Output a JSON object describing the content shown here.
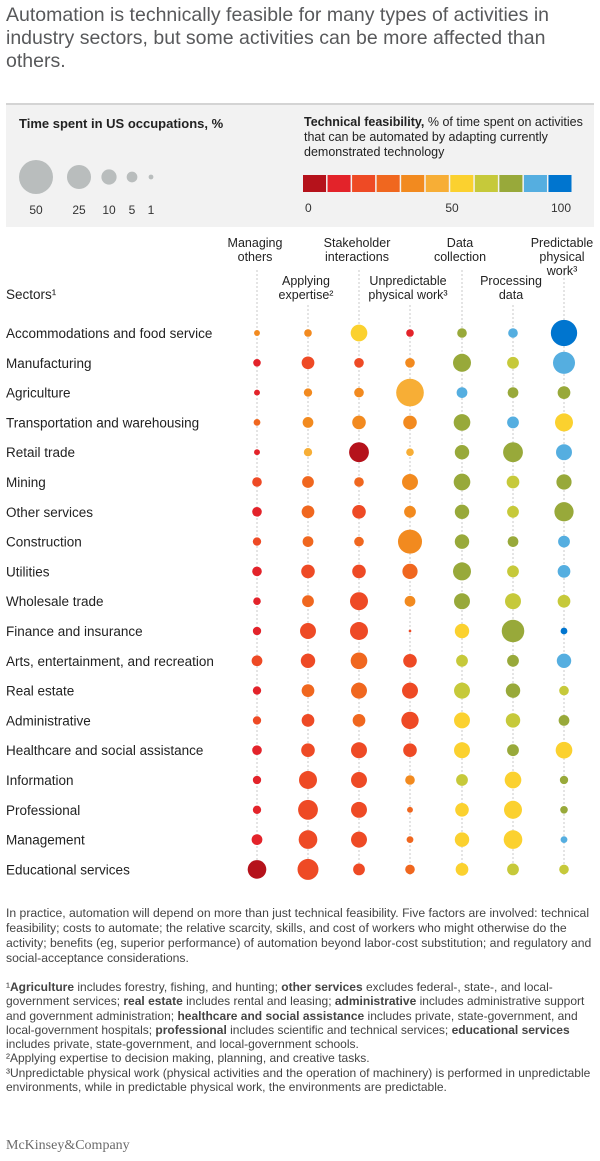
{
  "title": "Automation is technically feasible for many types of activities in industry sectors, but some activities can be more affected than others.",
  "legend": {
    "size_title": "Time spent in US occupations, %",
    "size_values": [
      50,
      25,
      10,
      5,
      1
    ],
    "size_labels": [
      "50",
      "25",
      "10",
      "5",
      "1"
    ],
    "color_title_bold": "Technical feasibility,",
    "color_title_rest": " % of time spent on activities that can be automated by adapting currently demonstrated technology",
    "color_scale": [
      "#b5121b",
      "#e3232a",
      "#ee4a25",
      "#f0671f",
      "#f28a1f",
      "#f7ae36",
      "#fbd12f",
      "#c6c93a",
      "#98a93a",
      "#55aee0",
      "#0075cf"
    ],
    "color_tick_labels": [
      "0",
      "50",
      "100"
    ]
  },
  "chart_data": {
    "type": "bubble-matrix",
    "sectors_header": "Sectors¹",
    "columns": [
      [
        "Managing",
        "others"
      ],
      [
        "Applying",
        "expertise²"
      ],
      [
        "Stakeholder",
        "interactions"
      ],
      [
        "Unpredictable",
        "physical work³"
      ],
      [
        "Data",
        "collection"
      ],
      [
        "Processing",
        "data"
      ],
      [
        "Predictable",
        "physical",
        "work³"
      ]
    ],
    "rows": [
      {
        "sector": "Accommodations and food service",
        "size": [
          1.5,
          2.5,
          12,
          2.5,
          4,
          4,
          30
        ],
        "color": [
          4,
          4,
          6,
          1,
          8,
          9,
          10
        ]
      },
      {
        "sector": "Manufacturing",
        "size": [
          2.5,
          7,
          4,
          4,
          14,
          6,
          21
        ],
        "color": [
          1,
          2,
          2,
          4,
          8,
          7,
          9
        ]
      },
      {
        "sector": "Agriculture",
        "size": [
          1.5,
          3,
          4,
          33,
          5,
          5,
          7
        ],
        "color": [
          1,
          4,
          4,
          5,
          9,
          8,
          8
        ]
      },
      {
        "sector": "Transportation and warehousing",
        "size": [
          2,
          5,
          8,
          8,
          12,
          6,
          14
        ],
        "color": [
          3,
          4,
          4,
          4,
          8,
          9,
          6
        ]
      },
      {
        "sector": "Retail trade",
        "size": [
          1.5,
          3,
          17,
          2.5,
          9,
          17,
          11
        ],
        "color": [
          1,
          5,
          0,
          5,
          8,
          8,
          9
        ]
      },
      {
        "sector": "Mining",
        "size": [
          4,
          6,
          4,
          11,
          12,
          7,
          10
        ],
        "color": [
          2,
          3,
          3,
          4,
          8,
          7,
          8
        ]
      },
      {
        "sector": "Other services",
        "size": [
          4,
          7,
          8,
          6,
          9,
          6,
          16
        ],
        "color": [
          1,
          3,
          2,
          4,
          8,
          7,
          8
        ]
      },
      {
        "sector": "Construction",
        "size": [
          3,
          5,
          4,
          25,
          9,
          5,
          6
        ],
        "color": [
          2,
          3,
          3,
          4,
          8,
          8,
          9
        ]
      },
      {
        "sector": "Utilities",
        "size": [
          4,
          8,
          8,
          10,
          14,
          6,
          7
        ],
        "color": [
          1,
          2,
          2,
          3,
          8,
          7,
          9
        ]
      },
      {
        "sector": "Wholesale trade",
        "size": [
          2.5,
          6,
          14,
          5,
          11,
          11,
          7
        ],
        "color": [
          1,
          3,
          2,
          4,
          8,
          7,
          7
        ]
      },
      {
        "sector": "Finance and insurance",
        "size": [
          3,
          11,
          14,
          0.3,
          9,
          22,
          2
        ],
        "color": [
          1,
          2,
          2,
          2,
          6,
          8,
          10
        ]
      },
      {
        "sector": "Arts, entertainment, and recreation",
        "size": [
          5,
          9,
          12,
          8,
          6,
          6,
          9
        ],
        "color": [
          2,
          2,
          3,
          2,
          7,
          8,
          9
        ]
      },
      {
        "sector": "Real estate",
        "size": [
          3,
          7,
          11,
          11,
          11,
          9,
          4
        ],
        "color": [
          1,
          3,
          3,
          2,
          7,
          8,
          7
        ]
      },
      {
        "sector": "Administrative",
        "size": [
          3,
          7,
          7,
          13,
          11,
          9,
          5
        ],
        "color": [
          2,
          2,
          3,
          2,
          6,
          7,
          8
        ]
      },
      {
        "sector": "Healthcare and social assistance",
        "size": [
          4,
          8,
          11,
          8,
          11,
          6,
          12
        ],
        "color": [
          1,
          2,
          2,
          2,
          6,
          8,
          6
        ]
      },
      {
        "sector": "Information",
        "size": [
          3,
          14,
          11,
          4,
          6,
          12,
          3
        ],
        "color": [
          1,
          2,
          2,
          4,
          7,
          6,
          8
        ]
      },
      {
        "sector": "Professional",
        "size": [
          3,
          17,
          11,
          1.5,
          8,
          14,
          2.5
        ],
        "color": [
          1,
          2,
          2,
          3,
          6,
          6,
          8
        ]
      },
      {
        "sector": "Management",
        "size": [
          5,
          15,
          11,
          2,
          9,
          15,
          2
        ],
        "color": [
          1,
          2,
          2,
          3,
          6,
          6,
          9
        ]
      },
      {
        "sector": "Educational services",
        "size": [
          15,
          19,
          6,
          4,
          7,
          6,
          4
        ],
        "color": [
          0,
          2,
          2,
          3,
          6,
          7,
          7
        ]
      }
    ]
  },
  "note": "In practice, automation will depend on more than just technical feasibility. Five factors are involved: technical feasibility; costs to automate; the relative scarcity, skills, and cost of workers who might otherwise do the activity; benefits (eg, superior performance) of automation beyond labor-cost substitution; and regulatory and social-acceptance considerations.",
  "footnotes": {
    "f1": [
      {
        "b": false,
        "t": "¹"
      },
      {
        "b": true,
        "t": "Agriculture"
      },
      {
        "b": false,
        "t": " includes forestry, fishing, and hunting; "
      },
      {
        "b": true,
        "t": "other services"
      },
      {
        "b": false,
        "t": " excludes federal-, state-, and local-government services; "
      },
      {
        "b": true,
        "t": "real estate"
      },
      {
        "b": false,
        "t": " includes rental and leasing; "
      },
      {
        "b": true,
        "t": "administrative"
      },
      {
        "b": false,
        "t": " includes administrative support and government administration; "
      },
      {
        "b": true,
        "t": "healthcare and social assistance"
      },
      {
        "b": false,
        "t": " includes private, state-government, and local-government hospitals; "
      },
      {
        "b": true,
        "t": "professional"
      },
      {
        "b": false,
        "t": " includes scientific and technical services; "
      },
      {
        "b": true,
        "t": "educational services"
      },
      {
        "b": false,
        "t": " includes private, state-government, and local-government schools."
      }
    ],
    "f2": "²Applying expertise to decision making, planning, and creative tasks.",
    "f3": "³Unpredictable physical work (physical activities and the operation of machinery) is performed in unpredictable environments, while in predictable physical work, the environments are predictable."
  },
  "logo": "McKinsey&Company"
}
